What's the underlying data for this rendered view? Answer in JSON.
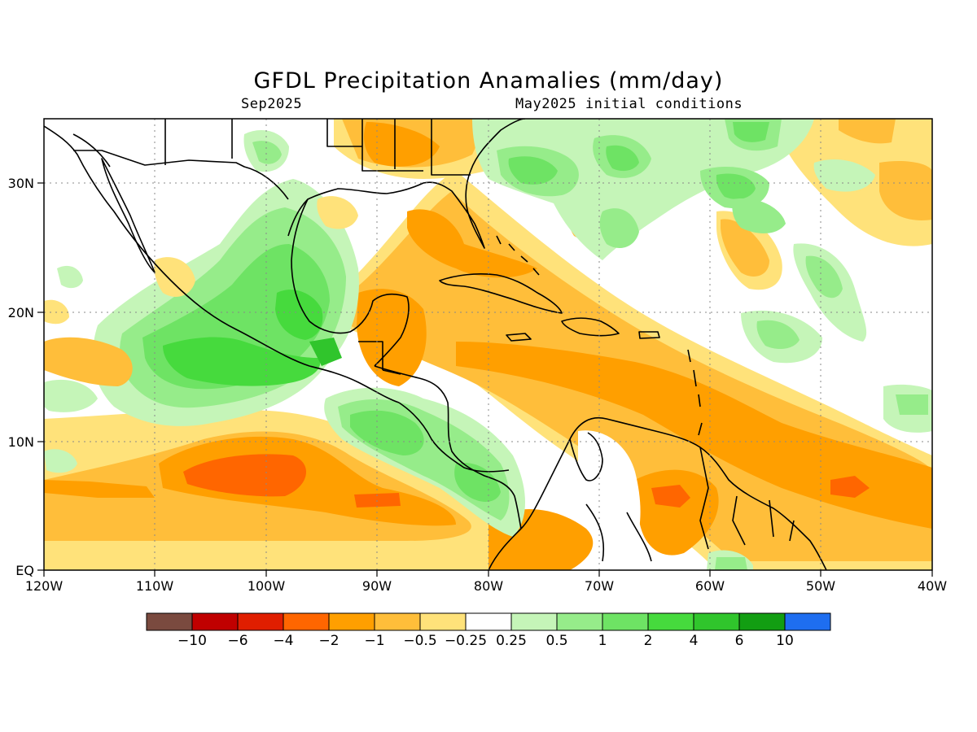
{
  "title": "GFDL Precipitation Anamalies (mm/day)",
  "valid_month": "Sep2025",
  "init_conditions": "May2025 initial conditions",
  "axes": {
    "lon_ticks": [
      "120W",
      "110W",
      "100W",
      "90W",
      "80W",
      "70W",
      "60W",
      "50W",
      "40W"
    ],
    "lat_ticks": [
      "30N",
      "20N",
      "10N",
      "EQ"
    ]
  },
  "colorbar": {
    "colors": [
      "#7a4a3f",
      "#c00000",
      "#e01e00",
      "#ff6600",
      "#ff9f00",
      "#ffbe3a",
      "#ffe27a",
      "#ffffff",
      "#c5f5b8",
      "#96ec8a",
      "#6ee364",
      "#46da3d",
      "#30c52c",
      "#129e12",
      "#1e6ef0"
    ],
    "labels": [
      "-10",
      "-6",
      "-4",
      "-2",
      "-1",
      "-0.5",
      "-0.25",
      "0.25",
      "0.5",
      "1",
      "2",
      "4",
      "6",
      "10"
    ]
  }
}
